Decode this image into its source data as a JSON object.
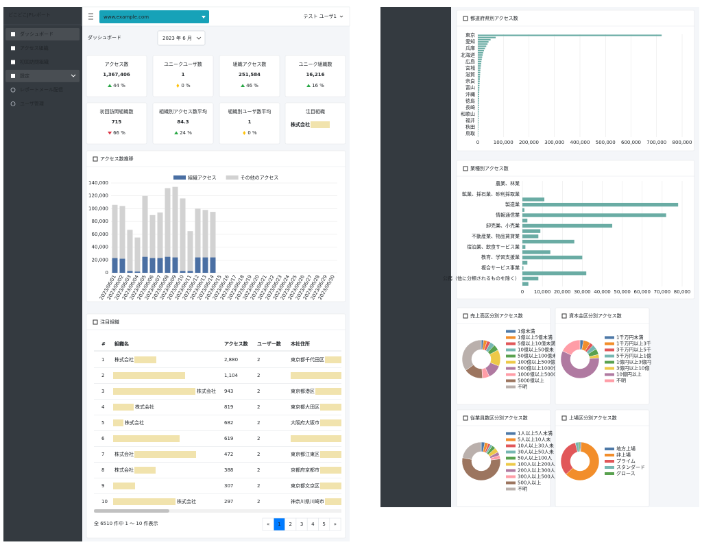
{
  "sidebar": {
    "brand": "どこどこJPレポート",
    "menu": [
      {
        "label": "ダッシュボード",
        "active": true
      },
      {
        "label": "アクセス組織"
      },
      {
        "label": "初回訪問組織"
      },
      {
        "label": "設定",
        "children": [
          {
            "label": "レポートメール配信"
          },
          {
            "label": "ユーザ管理"
          }
        ]
      }
    ]
  },
  "header": {
    "site": "www.example.com",
    "user": "テスト ユーザ1"
  },
  "page": {
    "title": "ダッシュボード",
    "month": "2023 年 6 月"
  },
  "stats": [
    {
      "label": "アクセス数",
      "value": "1,367,406",
      "change": "44 %",
      "trend": "up"
    },
    {
      "label": "ユニークユーザ数",
      "value": "1",
      "change": "0 %",
      "trend": "flat"
    },
    {
      "label": "組織アクセス数",
      "value": "251,584",
      "change": "46 %",
      "trend": "up"
    },
    {
      "label": "ユニーク組織数",
      "value": "16,216",
      "change": "16 %",
      "trend": "up"
    },
    {
      "label": "初回訪問組織数",
      "value": "715",
      "change": "66 %",
      "trend": "down"
    },
    {
      "label": "組織別アクセス数平均",
      "value": "84.3",
      "change": "24 %",
      "trend": "up"
    },
    {
      "label": "組織別ユーザ数平均",
      "value": "1",
      "change": "0 %",
      "trend": "flat"
    },
    {
      "label": "注目組織",
      "value": "株式会社"
    }
  ],
  "access_chart": {
    "type": "bar",
    "stacked": true,
    "title": "アクセス数推移",
    "legend": "top",
    "grid": true,
    "categories": [
      "2023/06/01",
      "2023/06/02",
      "2023/06/03",
      "2023/06/04",
      "2023/06/05",
      "2023/06/06",
      "2023/06/07",
      "2023/06/08",
      "2023/06/09",
      "2023/06/10",
      "2023/06/11",
      "2023/06/12",
      "2023/06/13",
      "2023/06/14",
      "2023/06/15",
      "2023/06/16",
      "2023/06/17",
      "2023/06/18",
      "2023/06/19",
      "2023/06/20",
      "2023/06/21",
      "2023/06/22",
      "2023/06/23",
      "2023/06/24",
      "2023/06/25",
      "2023/06/26",
      "2023/06/27",
      "2023/06/28",
      "2023/06/29",
      "2023/06/30"
    ],
    "series": [
      {
        "name": "組織アクセス",
        "color": "#4a6fa3",
        "values": [
          23000,
          22000,
          3000,
          2000,
          25000,
          23000,
          23000,
          25000,
          24000,
          3000,
          3000,
          24000,
          24000,
          24000,
          null,
          null,
          null,
          null,
          null,
          null,
          null,
          null,
          null,
          null,
          null,
          null,
          null,
          null,
          null,
          null
        ]
      },
      {
        "name": "その他のアクセス",
        "color": "#d2d2d2",
        "values": [
          83000,
          82000,
          64000,
          53000,
          95000,
          67000,
          71000,
          107000,
          110000,
          113000,
          62000,
          76000,
          74000,
          71000,
          null,
          null,
          null,
          null,
          null,
          null,
          null,
          null,
          null,
          null,
          null,
          null,
          null,
          null,
          null,
          null
        ]
      }
    ],
    "ylim": [
      0,
      140000
    ],
    "yticks": [
      0,
      {
        "value": 20000,
        "label": "20,000"
      },
      {
        "value": 40000,
        "label": "40,000"
      },
      {
        "value": 60000,
        "label": "60,000"
      },
      {
        "value": 80000,
        "label": "80,000"
      },
      {
        "value": 100000,
        "label": "100,000"
      },
      {
        "value": 120000,
        "label": "120,000"
      },
      {
        "value": 140000,
        "label": "140,000"
      }
    ]
  },
  "table": {
    "title": "注目組織",
    "columns": [
      "#",
      "組織名",
      "アクセス数",
      "ユーザー数",
      "本社住所"
    ],
    "rows": [
      [
        "1",
        "株式会社",
        "2,880",
        "2",
        "東京都千代田区"
      ],
      [
        "2",
        null,
        "1,104",
        "2",
        null
      ],
      [
        "3",
        "株式会社",
        "943",
        "2",
        "東京都港区"
      ],
      [
        "4",
        "株式会社",
        "819",
        "2",
        "東京都大田区"
      ],
      [
        "5",
        "株式会社",
        "682",
        "2",
        "大阪府大阪市"
      ],
      [
        "6",
        null,
        "619",
        "2",
        null
      ],
      [
        "7",
        "株式会社",
        "472",
        "2",
        "東京都江東区"
      ],
      [
        "8",
        "株式会社",
        "388",
        "2",
        "京都府京都市"
      ],
      [
        "9",
        null,
        "307",
        "2",
        "東京都文京区"
      ],
      [
        "10",
        "株式会社",
        "297",
        "2",
        "神奈川県川崎市"
      ]
    ],
    "footer": "全 6510 件中 1 〜 10 件表示",
    "pagination": [
      "«",
      "1",
      "2",
      "3",
      "4",
      "5",
      "»"
    ],
    "active_page": "1"
  },
  "prefecture_chart": {
    "type": "barh",
    "title": "都道府県別アクセス数",
    "color": "#6aaca4",
    "grid": true,
    "categories": [
      "東京",
      null,
      null,
      "愛知",
      null,
      null,
      "兵庫",
      null,
      null,
      "北海道",
      null,
      null,
      "広島",
      null,
      null,
      "宮城",
      null,
      null,
      "滋賀",
      null,
      null,
      "奈良",
      null,
      null,
      "富山",
      null,
      null,
      "沖縄",
      null,
      null,
      "徳島",
      null,
      null,
      "長崎",
      null,
      null,
      "和歌山",
      null,
      null,
      "福井",
      null,
      null,
      "秋田",
      null,
      null,
      "鳥取",
      null
    ],
    "values": [
      720000,
      70000,
      50000,
      42000,
      38000,
      33000,
      28000,
      24000,
      21000,
      19000,
      17000,
      15500,
      14000,
      13000,
      12000,
      11000,
      10000,
      9500,
      9000,
      8500,
      8000,
      7500,
      7000,
      6500,
      6200,
      5900,
      5600,
      5300,
      5000,
      4800,
      4600,
      4400,
      4200,
      4000,
      3800,
      3600,
      3400,
      3200,
      3000,
      2800,
      2600,
      2400,
      2200,
      2000,
      1800,
      1600,
      1400
    ],
    "xlim": [
      0,
      800000
    ],
    "xticks": [
      0,
      {
        "value": 100000,
        "label": "100,000"
      },
      {
        "value": 200000,
        "label": "200,000"
      },
      {
        "value": 300000,
        "label": "300,000"
      },
      {
        "value": 400000,
        "label": "400,000"
      },
      {
        "value": 500000,
        "label": "500,000"
      },
      {
        "value": 600000,
        "label": "600,000"
      },
      {
        "value": 700000,
        "label": "700,000"
      },
      {
        "value": 800000,
        "label": "800,000"
      }
    ]
  },
  "industry_chart": {
    "type": "barh",
    "title": "業種別アクセス数",
    "color": "#6aaca4",
    "grid": true,
    "categories": [
      "農業、林業",
      null,
      "鉱業、採石業、砂利採取業",
      null,
      "製造業",
      null,
      "情報通信業",
      null,
      "卸売業、小売業",
      null,
      "不動産業、物品賃貸業",
      null,
      "宿泊業、飲食サービス業",
      null,
      "教育、学習支援業",
      null,
      "複合サービス事業",
      null,
      "公務（他に分類されるものを除く）",
      null
    ],
    "values": [
      0,
      0,
      0,
      11000,
      78000,
      1000,
      72000,
      2500,
      45000,
      9000,
      8000,
      26000,
      1500,
      14000,
      30000,
      2500,
      500,
      32000,
      8000,
      3000
    ],
    "xlim": [
      0,
      80000
    ],
    "xticks": [
      0,
      {
        "value": 10000,
        "label": "10,000"
      },
      {
        "value": 20000,
        "label": "20,000"
      },
      {
        "value": 30000,
        "label": "30,000"
      },
      {
        "value": 40000,
        "label": "40,000"
      },
      {
        "value": 50000,
        "label": "50,000"
      },
      {
        "value": 60000,
        "label": "60,000"
      },
      {
        "value": 70000,
        "label": "70,000"
      },
      {
        "value": 80000,
        "label": "80,000"
      }
    ]
  },
  "donuts": [
    {
      "type": "donut",
      "title": "売上高区分別アクセス数",
      "categories": [
        "1億未満",
        "1億以上5億未満",
        "5億以上10億未満",
        "10億以上50億未",
        "50億以上100億未",
        "100億以上500億",
        "500億以上1000億",
        "1000億以上5000",
        "5000億以上",
        "不明"
      ],
      "values": [
        2,
        3,
        3,
        4,
        5,
        14,
        12,
        6,
        16,
        35
      ],
      "colors": [
        "#4e79a7",
        "#f28e2b",
        "#e15759",
        "#76b7b2",
        "#59a14f",
        "#edc948",
        "#b07aa1",
        "#ff9da7",
        "#9c755f",
        "#bab0ac"
      ]
    },
    {
      "type": "donut",
      "title": "資本金区分別アクセス数",
      "categories": [
        "1千万円未満",
        "1千万円以上3千",
        "3千万円以上5千",
        "5千万円以上1億",
        "1億円以上3億円",
        "3億円以上10億",
        "10億円以上",
        "不明"
      ],
      "values": [
        3,
        6,
        3,
        4,
        5,
        3,
        58,
        18
      ],
      "colors": [
        "#4e79a7",
        "#f28e2b",
        "#e15759",
        "#76b7b2",
        "#59a14f",
        "#edc948",
        "#b07aa1",
        "#ff9da7"
      ]
    },
    {
      "type": "donut",
      "title": "従業員数区分別アクセス数",
      "categories": [
        "1人以上5人未満",
        "5人以上10人未",
        "10人以上30人未",
        "30人以上50人未",
        "50人以上100人",
        "100人以上200人",
        "200人以上300人",
        "300人以上500人",
        "500人以上",
        "不明"
      ],
      "values": [
        3,
        3,
        2,
        2,
        3,
        4,
        3,
        3,
        55,
        22
      ],
      "colors": [
        "#4e79a7",
        "#f28e2b",
        "#e15759",
        "#76b7b2",
        "#59a14f",
        "#edc948",
        "#b07aa1",
        "#ff9da7",
        "#9c755f",
        "#bab0ac"
      ]
    },
    {
      "type": "donut",
      "title": "上場区分別アクセス数",
      "categories": [
        "地方上場",
        "非上場",
        "プライム",
        "スタンダード",
        "グロース"
      ],
      "values": [
        1,
        62,
        33,
        3,
        1
      ],
      "colors": [
        "#4e79a7",
        "#f28e2b",
        "#e15759",
        "#76b7b2",
        "#59a14f"
      ]
    }
  ]
}
